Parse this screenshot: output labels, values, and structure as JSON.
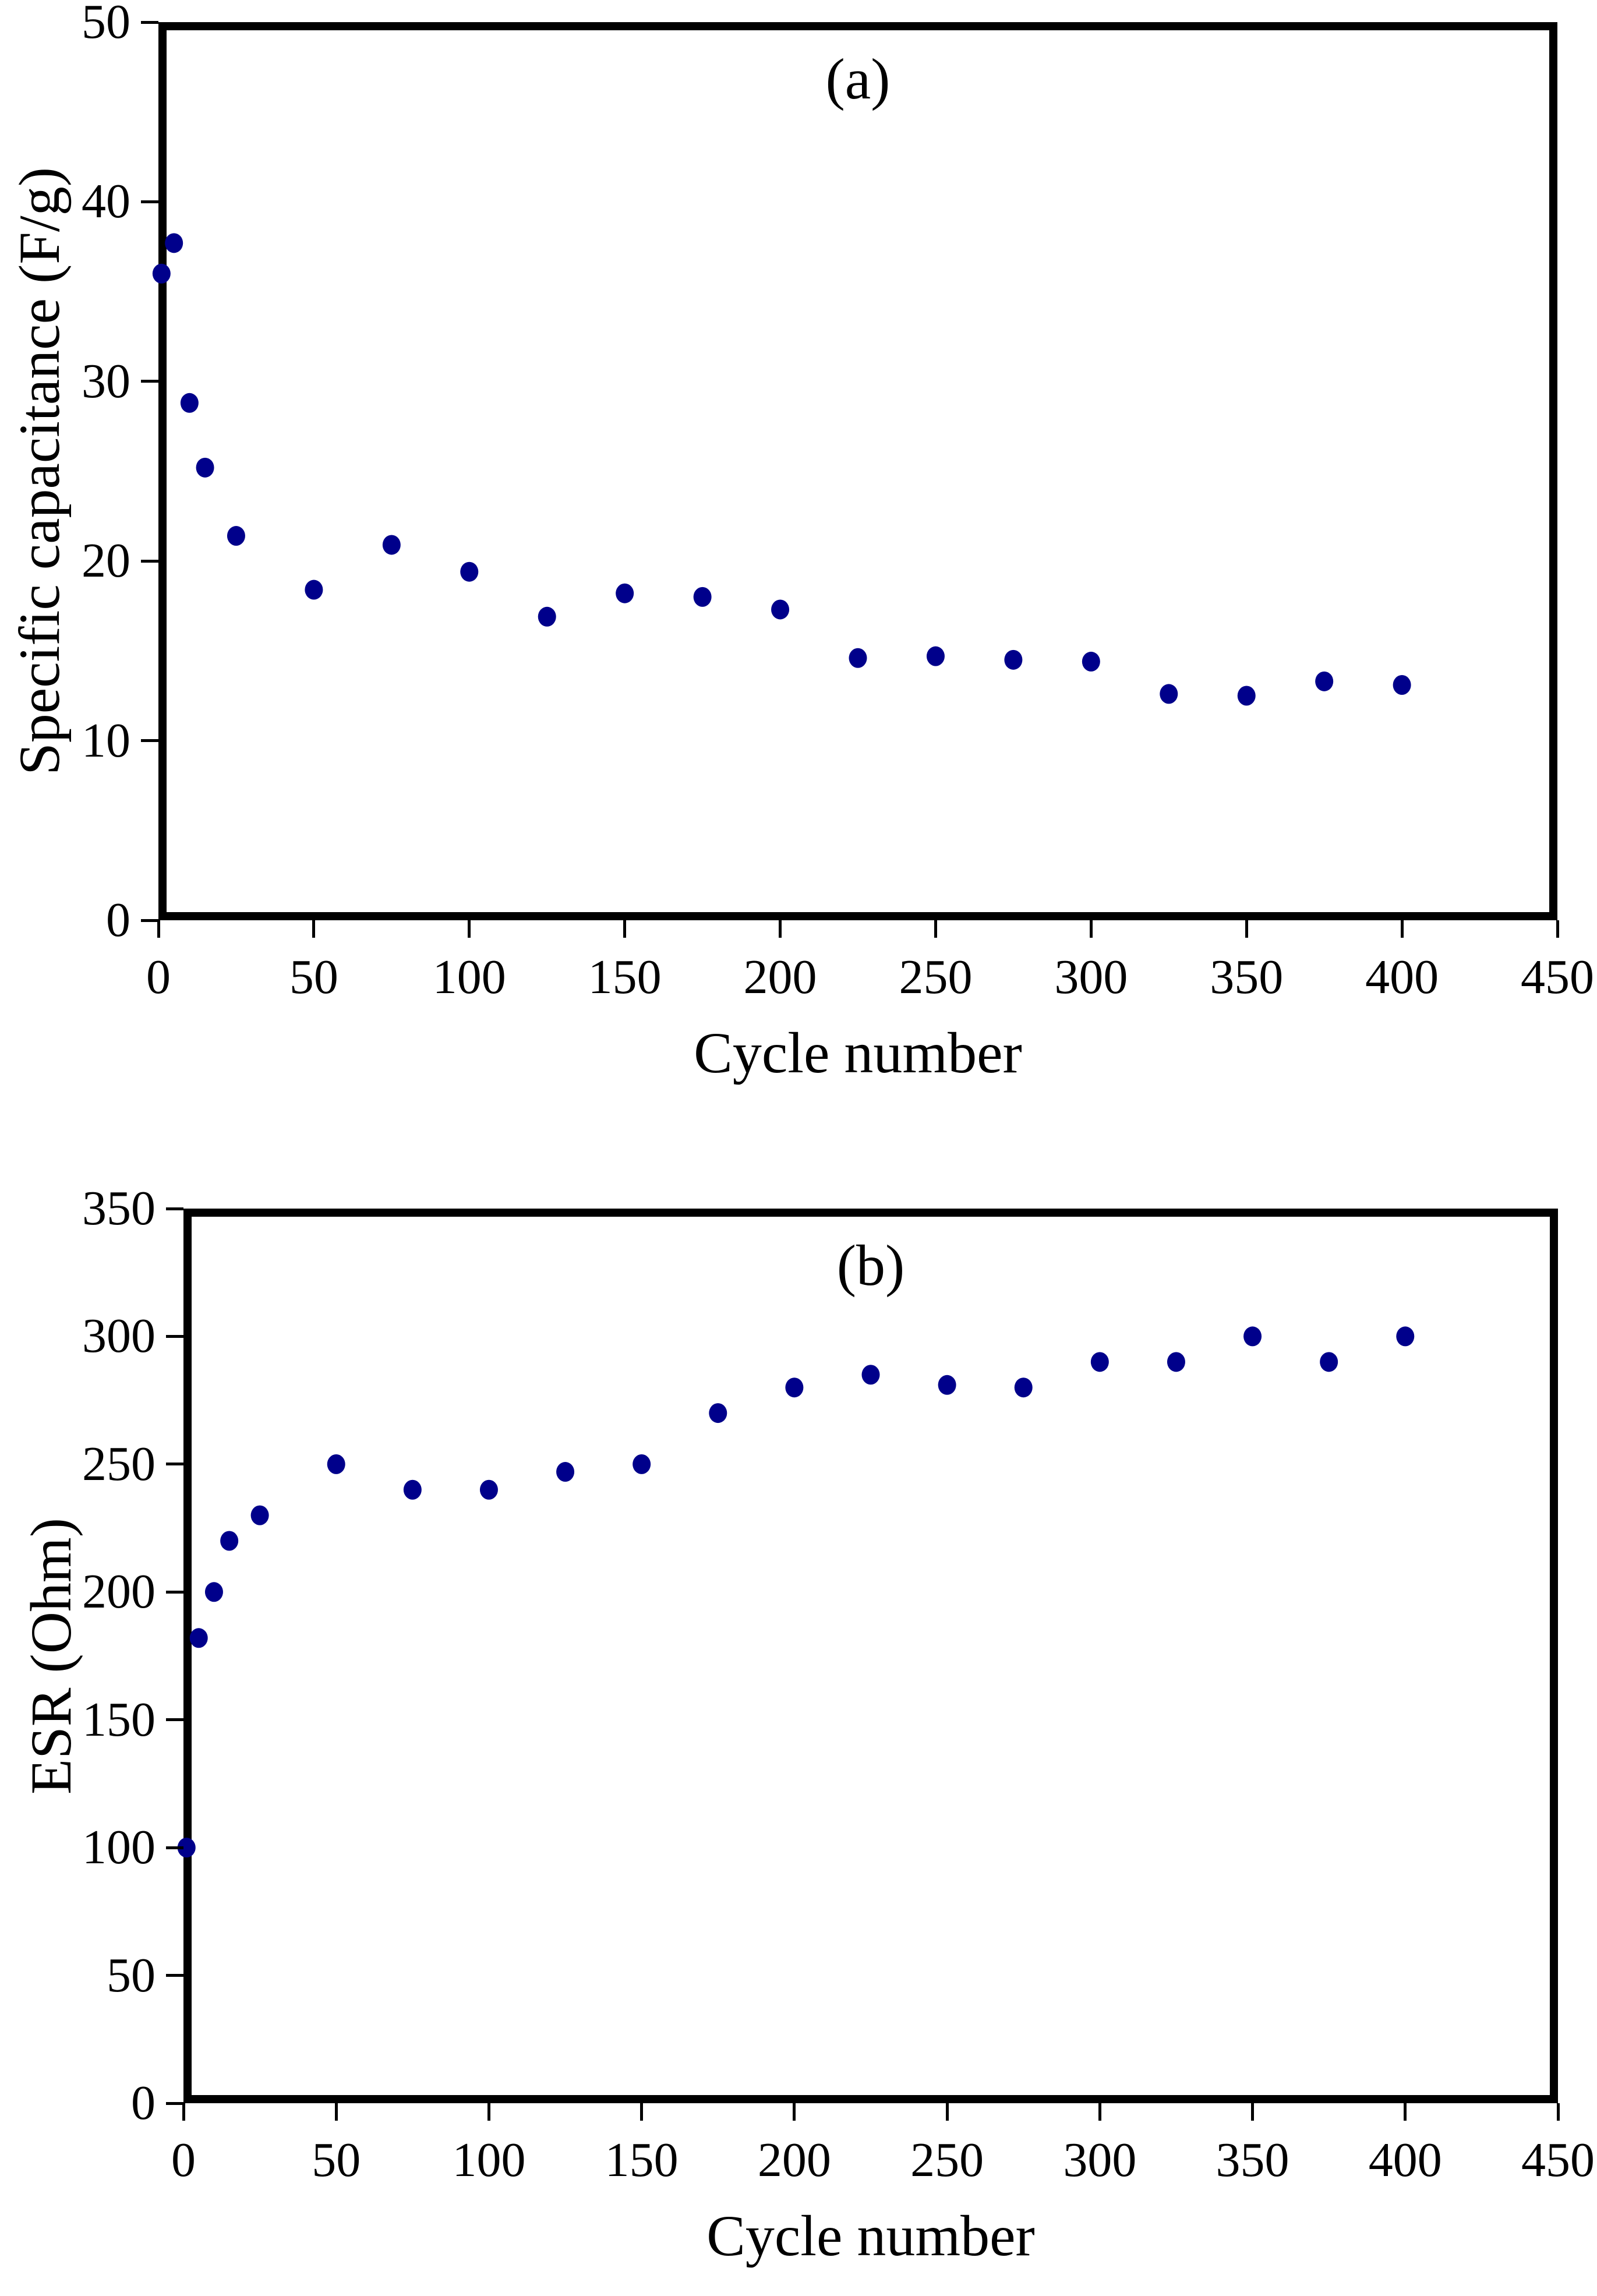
{
  "page": {
    "background": "#ffffff"
  },
  "chart_data": [
    {
      "type": "scatter",
      "panel_label": "(a)",
      "xlabel": "Cycle number",
      "ylabel": "Specific capacitance (F/g)",
      "xlim": [
        0,
        450
      ],
      "ylim": [
        0,
        50
      ],
      "x_ticks": [
        0,
        50,
        100,
        150,
        200,
        250,
        300,
        350,
        400,
        450
      ],
      "y_ticks": [
        0,
        10,
        20,
        30,
        40,
        50
      ],
      "grid": false,
      "legend": "none",
      "marker": {
        "shape": "circle",
        "color": "#00008B",
        "radius_px": 16
      },
      "x": [
        1,
        5,
        10,
        15,
        25,
        50,
        75,
        100,
        125,
        150,
        175,
        200,
        225,
        250,
        275,
        300,
        325,
        350,
        375,
        400
      ],
      "y": [
        36.0,
        37.7,
        28.8,
        25.2,
        21.4,
        18.4,
        20.9,
        19.4,
        16.9,
        18.2,
        18.0,
        17.3,
        14.6,
        14.7,
        14.5,
        14.4,
        12.6,
        12.5,
        13.3,
        13.1
      ]
    },
    {
      "type": "scatter",
      "panel_label": "(b)",
      "xlabel": "Cycle number",
      "ylabel": "ESR (Ohm)",
      "xlim": [
        0,
        450
      ],
      "ylim": [
        0,
        350
      ],
      "x_ticks": [
        0,
        50,
        100,
        150,
        200,
        250,
        300,
        350,
        400,
        450
      ],
      "y_ticks": [
        0,
        50,
        100,
        150,
        200,
        250,
        300,
        350
      ],
      "grid": false,
      "legend": "none",
      "marker": {
        "shape": "circle",
        "color": "#00008B",
        "radius_px": 16
      },
      "x": [
        1,
        5,
        10,
        15,
        25,
        50,
        75,
        100,
        125,
        150,
        175,
        200,
        225,
        250,
        275,
        300,
        325,
        350,
        375,
        400
      ],
      "y": [
        100,
        182,
        200,
        220,
        230,
        250,
        240,
        240,
        247,
        250,
        270,
        280,
        285,
        281,
        280,
        290,
        290,
        300,
        290,
        300
      ]
    }
  ]
}
